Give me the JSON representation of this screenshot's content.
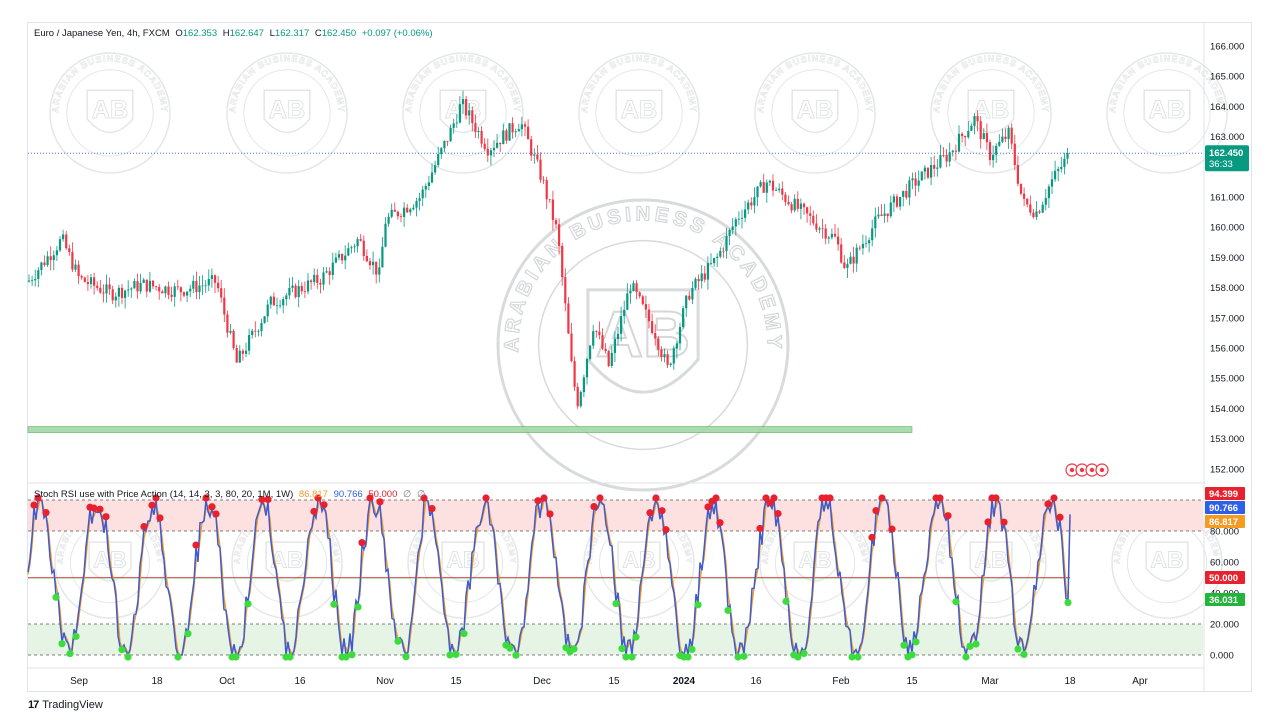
{
  "price_legend": {
    "symbol": "Euro / Japanese Yen, 4h, FXCM",
    "open_label": "O",
    "open": "162.353",
    "high_label": "H",
    "high": "162.647",
    "low_label": "L",
    "low": "162.317",
    "close_label": "C",
    "close": "162.450",
    "change": "+0.097 (+0.06%)"
  },
  "osc_legend": {
    "name": "Stoch RSI use with Price Action (14, 14, 3, 3, 80, 20, 1M, 1W)",
    "v1": "86.817",
    "v2": "90.766",
    "v3": "50.000",
    "v4": "∅",
    "v5": "∅"
  },
  "price_tag": {
    "value": "162.450",
    "countdown": "36:33"
  },
  "osc_tags": [
    {
      "value": "94.399",
      "color": "#e8212f"
    },
    {
      "value": "90.766",
      "color": "#2e5fe8"
    },
    {
      "value": "86.817",
      "color": "#f59a23"
    },
    {
      "value": "50.000",
      "color": "#e8212f"
    },
    {
      "value": "36.031",
      "color": "#22b53a"
    }
  ],
  "watermark": {
    "initials": "AB",
    "text": "ARABIAN BUSINESS ACADEMY"
  },
  "branding": {
    "logo": "TradingView"
  },
  "colors": {
    "up": "#089981",
    "down": "#f23645",
    "support_zone": "#a5d6a7",
    "k_line": "#3f5bd0",
    "d_line": "#f59a23",
    "overbought": "#fde0e0",
    "oversold": "#e6f4e6"
  },
  "chart_data": [
    {
      "type": "candlestick",
      "title": "Euro / Japanese Yen, 4h, FXCM",
      "y_ticks": [
        "166.000",
        "165.000",
        "164.000",
        "163.000",
        "162.000",
        "161.000",
        "160.000",
        "159.000",
        "158.000",
        "157.000",
        "156.000",
        "155.000",
        "154.000",
        "153.000",
        "152.000"
      ],
      "ylim": [
        151.5,
        166.3
      ],
      "x_ticks": [
        "Sep",
        "18",
        "Oct",
        "16",
        "Nov",
        "15",
        "Dec",
        "15",
        "2024",
        "16",
        "Feb",
        "15",
        "Mar",
        "18",
        "Apr"
      ],
      "current_price": 162.45,
      "support_zone": [
        153.2,
        153.4
      ],
      "approx_path": [
        {
          "date": "Aug 23",
          "close": 158.2
        },
        {
          "date": "Aug 29",
          "close": 159.6
        },
        {
          "date": "Sep 01",
          "close": 158.3
        },
        {
          "date": "Sep 08",
          "close": 157.8
        },
        {
          "date": "Sep 15",
          "close": 158.1
        },
        {
          "date": "Sep 22",
          "close": 157.9
        },
        {
          "date": "Sep 29",
          "close": 158.2
        },
        {
          "date": "Oct 03",
          "close": 155.5
        },
        {
          "date": "Oct 10",
          "close": 157.5
        },
        {
          "date": "Oct 20",
          "close": 158.3
        },
        {
          "date": "Oct 27",
          "close": 159.6
        },
        {
          "date": "Oct 31",
          "close": 158.4
        },
        {
          "date": "Nov 01",
          "close": 160.2
        },
        {
          "date": "Nov 08",
          "close": 161.0
        },
        {
          "date": "Nov 14",
          "close": 163.2
        },
        {
          "date": "Nov 16",
          "close": 164.1
        },
        {
          "date": "Nov 21",
          "close": 162.6
        },
        {
          "date": "Nov 27",
          "close": 163.5
        },
        {
          "date": "Dec 01",
          "close": 161.6
        },
        {
          "date": "Dec 04",
          "close": 159.8
        },
        {
          "date": "Dec 07",
          "close": 155.0
        },
        {
          "date": "Dec 08",
          "close": 154.2
        },
        {
          "date": "Dec 11",
          "close": 156.8
        },
        {
          "date": "Dec 14",
          "close": 155.4
        },
        {
          "date": "Dec 19",
          "close": 158.1
        },
        {
          "date": "Dec 25",
          "close": 156.5
        },
        {
          "date": "Dec 28",
          "close": 155.3
        },
        {
          "date": "Jan 02",
          "close": 157.8
        },
        {
          "date": "Jan 08",
          "close": 159.0
        },
        {
          "date": "Jan 12",
          "close": 160.3
        },
        {
          "date": "Jan 18",
          "close": 161.5
        },
        {
          "date": "Jan 24",
          "close": 160.6
        },
        {
          "date": "Jan 31",
          "close": 159.6
        },
        {
          "date": "Feb 02",
          "close": 158.6
        },
        {
          "date": "Feb 08",
          "close": 160.2
        },
        {
          "date": "Feb 15",
          "close": 161.4
        },
        {
          "date": "Feb 22",
          "close": 162.4
        },
        {
          "date": "Feb 27",
          "close": 163.6
        },
        {
          "date": "Mar 01",
          "close": 162.4
        },
        {
          "date": "Mar 05",
          "close": 163.1
        },
        {
          "date": "Mar 08",
          "close": 160.8
        },
        {
          "date": "Mar 11",
          "close": 160.5
        },
        {
          "date": "Mar 14",
          "close": 161.5
        },
        {
          "date": "Mar 18",
          "close": 162.45
        }
      ]
    },
    {
      "type": "line",
      "title": "Stoch RSI use with Price Action (14, 14, 3, 3, 80, 20, 1M, 1W)",
      "y_ticks": [
        "80.000",
        "60.000",
        "40.000",
        "20.000",
        "0.000"
      ],
      "ylim": [
        -2,
        102
      ],
      "overbought": 80,
      "oversold": 20,
      "midline": 50,
      "series": [
        {
          "name": "K",
          "last": 90.766
        },
        {
          "name": "D",
          "last": 86.817
        }
      ]
    }
  ]
}
